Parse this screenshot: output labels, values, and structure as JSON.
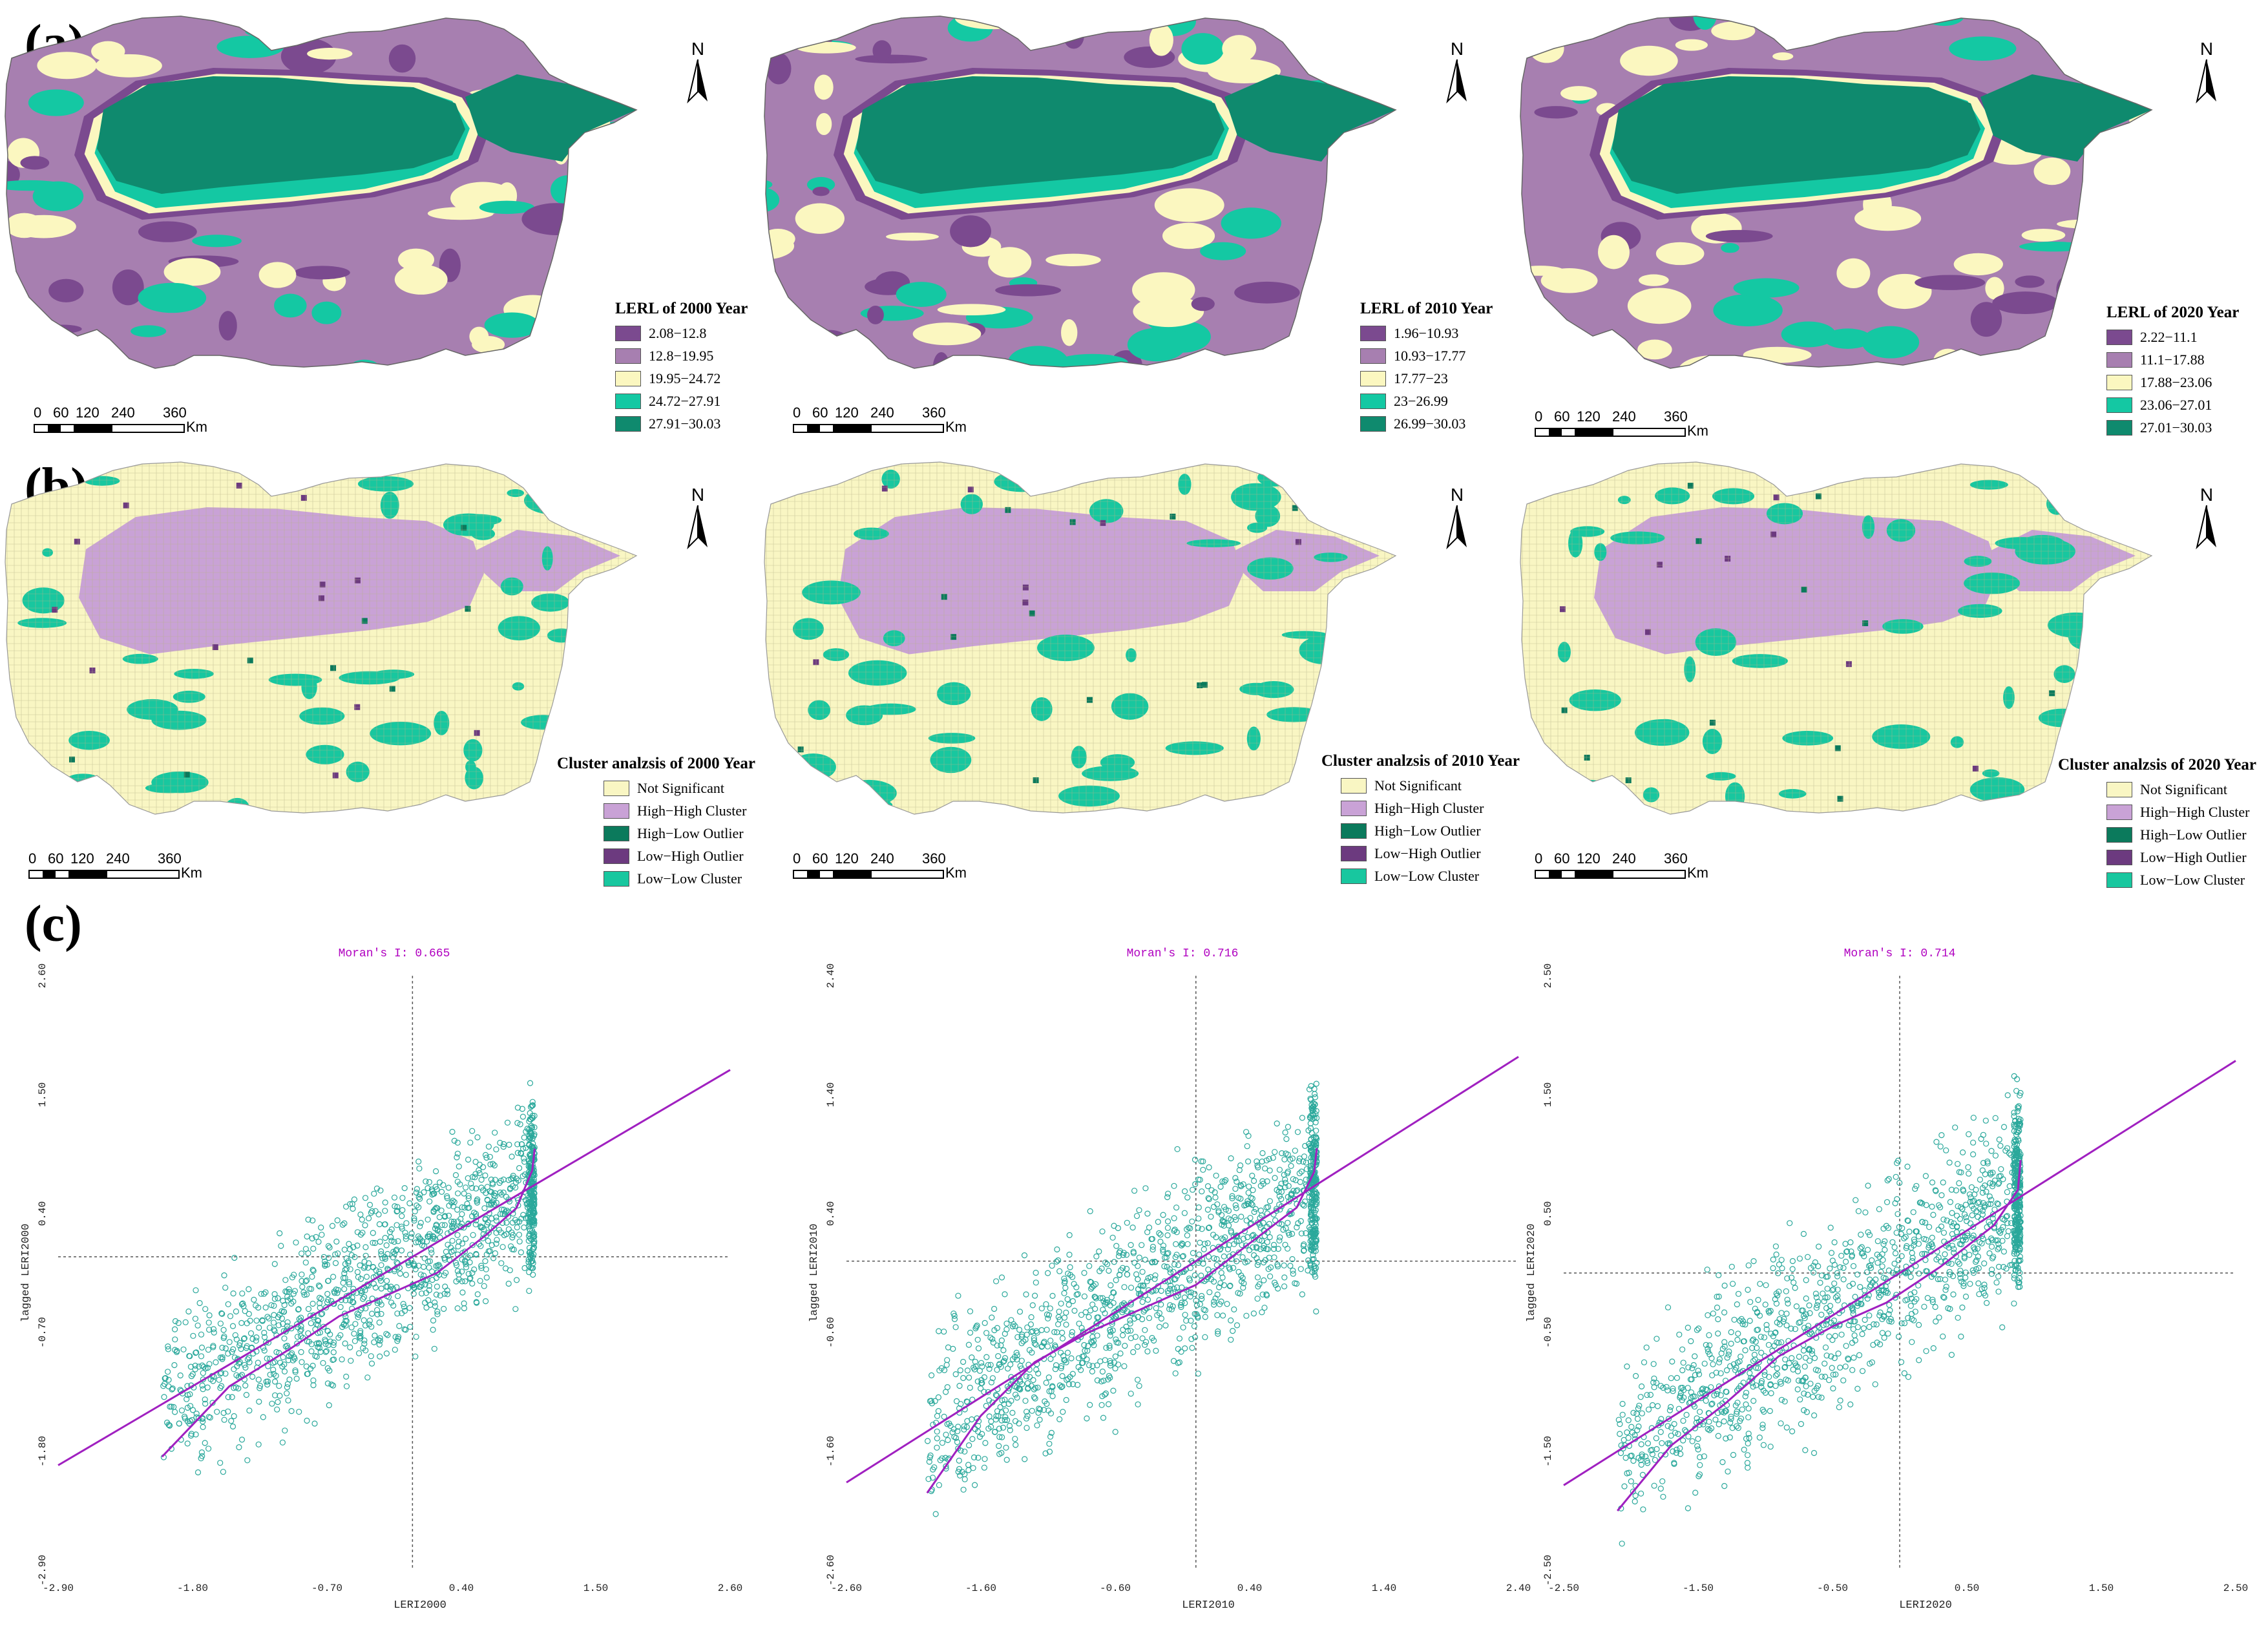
{
  "sections": {
    "a": "(a)",
    "b": "(b)",
    "c": "(c)"
  },
  "north_label": "N",
  "scale": {
    "ticks": [
      "0",
      "60",
      "120",
      "240",
      "360"
    ],
    "unit": "Km"
  },
  "colors": {
    "lerl": [
      "#7b4a8f",
      "#a77fb0",
      "#fbf7c0",
      "#14c8a3",
      "#0f8a6e"
    ],
    "cluster": [
      "#f9f6c3",
      "#c9a2d6",
      "#0b7a5c",
      "#6c3a7f",
      "#18c79f"
    ],
    "scatter_point": "#2aa89b",
    "scatter_line": "#a020c0"
  },
  "lerl_maps": [
    {
      "year": "2000",
      "title": "LERL of 2000 Year",
      "classes": [
        "2.08−12.8",
        "12.8−19.95",
        "19.95−24.72",
        "24.72−27.91",
        "27.91−30.03"
      ]
    },
    {
      "year": "2010",
      "title": "LERL of 2010 Year",
      "classes": [
        "1.96−10.93",
        "10.93−17.77",
        "17.77−23",
        "23−26.99",
        "26.99−30.03"
      ]
    },
    {
      "year": "2020",
      "title": "LERL of 2020 Year",
      "classes": [
        "2.22−11.1",
        "11.1−17.88",
        "17.88−23.06",
        "23.06−27.01",
        "27.01−30.03"
      ]
    }
  ],
  "cluster_maps": [
    {
      "year": "2000",
      "title": "Cluster analzsis of 2000 Year"
    },
    {
      "year": "2010",
      "title": "Cluster analzsis of 2010 Year"
    },
    {
      "year": "2020",
      "title": "Cluster analzsis of 2020 Year"
    }
  ],
  "cluster_classes": [
    "Not Significant",
    "High−High Cluster",
    "High−Low Outlier",
    "Low−High Outlier",
    "Low−Low Cluster"
  ],
  "chart_data": [
    {
      "type": "scatter",
      "title": "Moran's I: 0.665",
      "xlabel": "LERI2000",
      "ylabel": "lagged LERI2000",
      "xticks": [
        "-2.90",
        "-1.80",
        "-0.70",
        "0.40",
        "1.50",
        "2.60"
      ],
      "yticks": [
        "-2.90",
        "-1.80",
        "-0.70",
        "0.40",
        "1.50",
        "2.60"
      ],
      "xlim": [
        -2.9,
        2.6
      ],
      "ylim": [
        -2.9,
        2.6
      ],
      "crosshair": [
        0,
        0
      ],
      "x_range": [
        -2.05,
        1.0
      ],
      "regression": {
        "slope": 0.665,
        "intercept": 0,
        "x": [
          -2.9,
          2.6
        ]
      },
      "lowess": {
        "x": [
          -2.05,
          -1.5,
          -1.0,
          -0.6,
          -0.2,
          0.2,
          0.6,
          0.85,
          0.98,
          1.0
        ],
        "y": [
          -1.85,
          -1.2,
          -0.85,
          -0.55,
          -0.35,
          -0.15,
          0.2,
          0.45,
          0.8,
          1.0
        ]
      }
    },
    {
      "type": "scatter",
      "title": "Moran's I: 0.716",
      "xlabel": "LERI2010",
      "ylabel": "lagged LERI2010",
      "xticks": [
        "-2.60",
        "-1.60",
        "-0.60",
        "0.40",
        "1.40",
        "2.40"
      ],
      "yticks": [
        "-2.60",
        "-1.60",
        "-0.60",
        "0.40",
        "1.40",
        "2.40"
      ],
      "xlim": [
        -2.6,
        2.4
      ],
      "ylim": [
        -2.6,
        2.4
      ],
      "crosshair": [
        0,
        0
      ],
      "x_range": [
        -2.0,
        0.9
      ],
      "regression": {
        "slope": 0.716,
        "intercept": 0,
        "x": [
          -2.6,
          2.4
        ]
      },
      "lowess": {
        "x": [
          -2.0,
          -1.6,
          -1.2,
          -0.8,
          -0.4,
          0.0,
          0.4,
          0.75,
          0.88,
          0.9
        ],
        "y": [
          -1.95,
          -1.3,
          -0.85,
          -0.6,
          -0.4,
          -0.2,
          0.15,
          0.45,
          0.75,
          0.95
        ]
      }
    },
    {
      "type": "scatter",
      "title": "Moran's I: 0.714",
      "xlabel": "LERI2020",
      "ylabel": "lagged LERI2020",
      "xticks": [
        "-2.50",
        "-1.50",
        "-0.50",
        "0.50",
        "1.50",
        "2.50"
      ],
      "yticks": [
        "-2.50",
        "-1.50",
        "-0.50",
        "0.50",
        "1.50",
        "2.50"
      ],
      "xlim": [
        -2.5,
        2.5
      ],
      "ylim": [
        -2.5,
        2.5
      ],
      "crosshair": [
        0,
        0
      ],
      "x_range": [
        -2.1,
        0.9
      ],
      "regression": {
        "slope": 0.714,
        "intercept": 0,
        "x": [
          -2.5,
          2.5
        ]
      },
      "lowess": {
        "x": [
          -2.1,
          -1.7,
          -1.3,
          -0.9,
          -0.5,
          -0.1,
          0.3,
          0.7,
          0.88,
          0.9
        ],
        "y": [
          -2.0,
          -1.45,
          -1.1,
          -0.7,
          -0.45,
          -0.25,
          0.05,
          0.4,
          0.7,
          0.95
        ]
      }
    }
  ]
}
